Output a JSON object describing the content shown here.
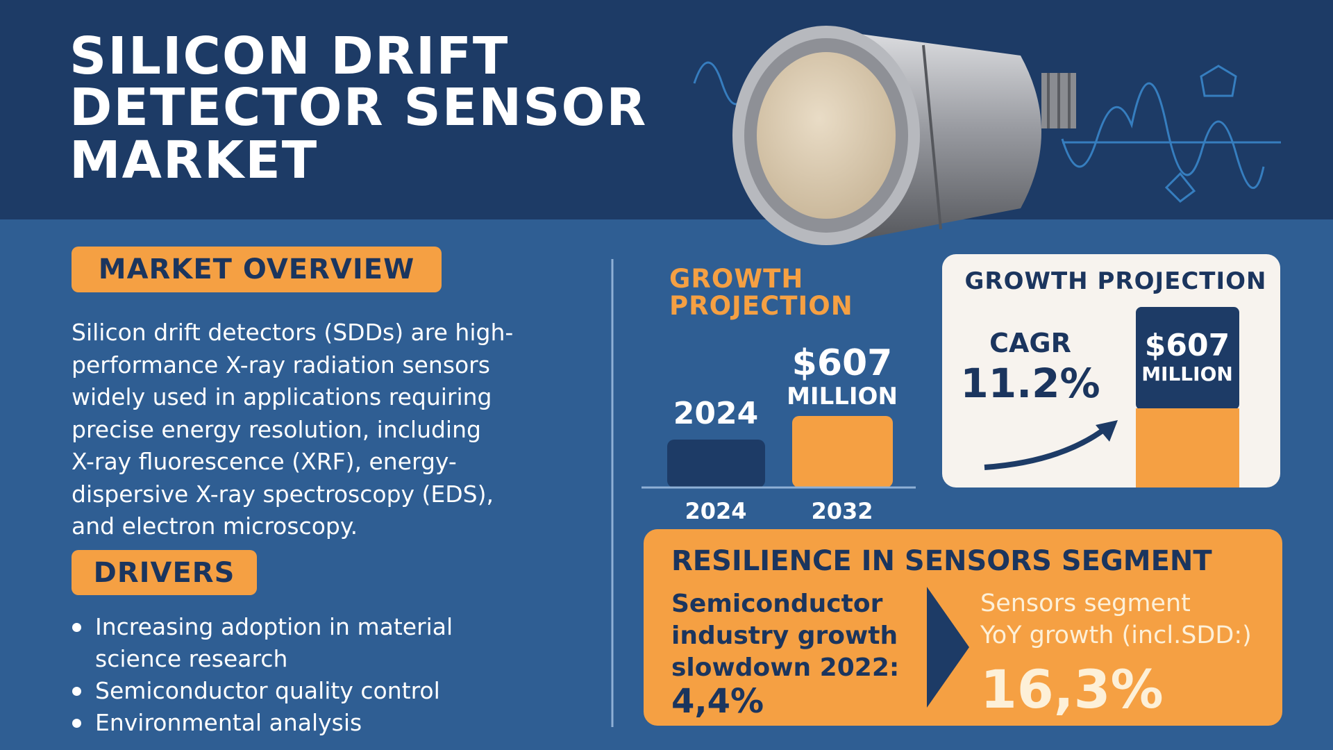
{
  "header": {
    "title": [
      "SILICON DRIFT",
      "DETECTOR SENSOR",
      "MARKET"
    ]
  },
  "overview": {
    "heading": "MARKET OVERVIEW",
    "lines": [
      "Silicon drift detectors (SDDs) are high-",
      "performance X-ray radiation sensors",
      "widely used in applications requiring",
      "precise energy resolution, including",
      "X-ray fluorescence (XRF), energy-",
      "dispersive X-ray spectroscopy (EDS),",
      "and electron microscopy."
    ]
  },
  "drivers": {
    "heading": "DRIVERS",
    "items": [
      [
        "Increasing adoption in material",
        "science research"
      ],
      [
        "Semiconductor quality control"
      ],
      [
        "Environmental analysis"
      ]
    ]
  },
  "growth_chart": {
    "title": [
      "GROWTH",
      "PROJECTION"
    ],
    "start_label": "2024",
    "end_value": "$607",
    "end_unit": "MILLION",
    "categories": [
      "2024",
      "2032"
    ]
  },
  "projection_card": {
    "title": "GROWTH PROJECTION",
    "cagr_label": "CAGR",
    "cagr_value": "11.2%",
    "bar_value": "$607",
    "bar_unit": "MILLION"
  },
  "resilience": {
    "title": "RESILIENCE IN SENSORS SEGMENT",
    "left_lines": [
      "Semiconductor",
      "industry growth",
      "slowdown 2022:"
    ],
    "left_value": "4,4%",
    "right_lines": [
      "Sensors segment",
      "YoY growth (incl.SDD:)"
    ],
    "right_value": "16,3%"
  }
}
